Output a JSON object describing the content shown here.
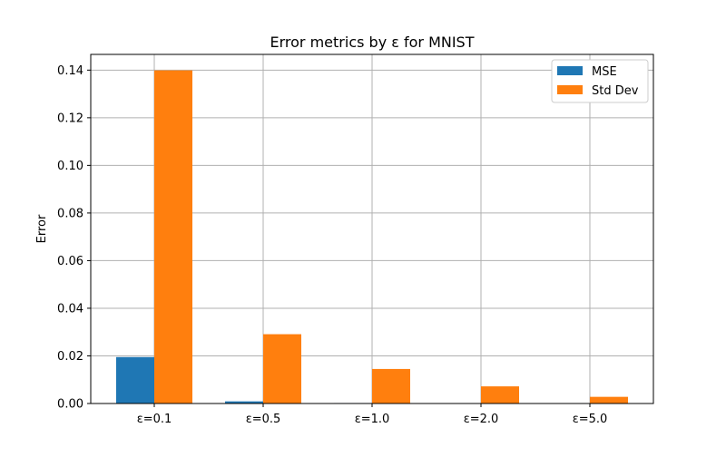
{
  "chart_data": {
    "type": "bar",
    "title": "Error metrics by ε for MNIST",
    "xlabel": "",
    "ylabel": "Error",
    "categories": [
      "ε=0.1",
      "ε=0.5",
      "ε=1.0",
      "ε=2.0",
      "ε=5.0"
    ],
    "series": [
      {
        "name": "MSE",
        "values": [
          0.0195,
          0.0009,
          0.0002,
          5e-05,
          1e-05
        ]
      },
      {
        "name": "Std Dev",
        "values": [
          0.1399,
          0.0291,
          0.0145,
          0.0072,
          0.0028
        ]
      }
    ],
    "ylim": [
      0,
      0.1466
    ],
    "yticks": [
      "0.00",
      "0.02",
      "0.04",
      "0.06",
      "0.08",
      "0.10",
      "0.12",
      "0.14"
    ],
    "grid": true,
    "legend_position": "top-right",
    "colors": {
      "MSE": "#1f77b4",
      "Std Dev": "#ff7f0e"
    }
  }
}
